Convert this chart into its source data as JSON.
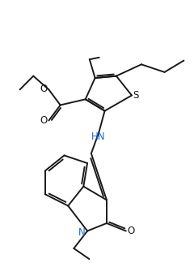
{
  "bg_color": "#ffffff",
  "line_color": "#1a1a1a",
  "hn_color": "#1a66cc",
  "n_color": "#1a66cc",
  "lw": 1.4,
  "figsize": [
    2.4,
    3.4
  ],
  "dpi": 100,
  "xlim": [
    0,
    10
  ],
  "ylim": [
    0,
    14
  ]
}
